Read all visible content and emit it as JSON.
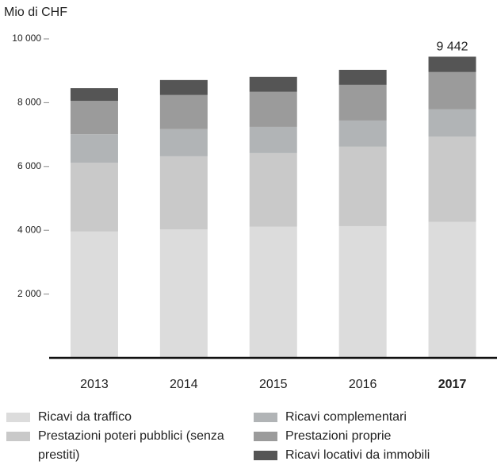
{
  "chart_data": {
    "type": "stacked_bar",
    "y_label": "Mio di CHF",
    "categories": [
      "2013",
      "2014",
      "2015",
      "2016",
      "2017"
    ],
    "highlight": "2017",
    "series": [
      {
        "name": "Ricavi da traffico",
        "color": "#dcdcdc",
        "values": [
          3960,
          4030,
          4110,
          4130,
          4260
        ]
      },
      {
        "name": "Prestazioni poteri pubblici (senza prestiti)",
        "color": "#c9c9c9",
        "values": [
          2160,
          2290,
          2310,
          2490,
          2680
        ]
      },
      {
        "name": "Ricavi complementari",
        "color": "#b1b4b6",
        "values": [
          890,
          850,
          820,
          820,
          850
        ]
      },
      {
        "name": "Prestazioni proprie",
        "color": "#9b9b9b",
        "values": [
          1045,
          1070,
          1100,
          1120,
          1170
        ]
      },
      {
        "name": "Ricavi locativi da immobili",
        "color": "#555555",
        "values": [
          400,
          470,
          470,
          470,
          482
        ]
      }
    ],
    "annotations": [
      {
        "category": "2017",
        "label": "9 442"
      }
    ],
    "ylim": [
      0,
      10000
    ],
    "yticks": [
      {
        "value": 2000,
        "label": "2 000"
      },
      {
        "value": 4000,
        "label": "4 000"
      },
      {
        "value": 6000,
        "label": "6 000"
      },
      {
        "value": 8000,
        "label": "8 000"
      },
      {
        "value": 10000,
        "label": "10 000"
      }
    ]
  }
}
